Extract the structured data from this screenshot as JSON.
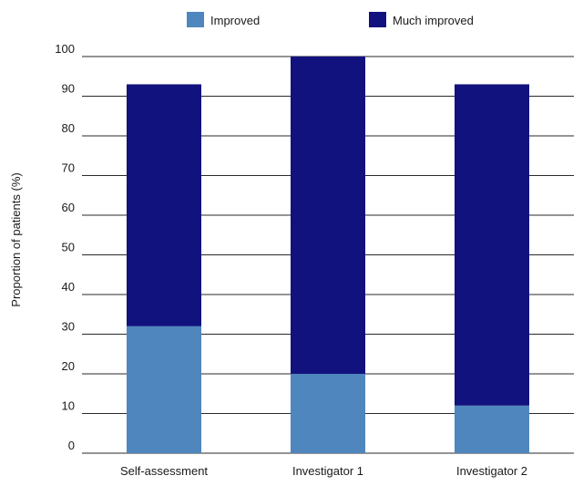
{
  "chart_data": {
    "type": "bar",
    "stacked": true,
    "categories": [
      "Self-assessment",
      "Investigator 1",
      "Investigator 2"
    ],
    "series": [
      {
        "name": "Improved",
        "values": [
          32,
          20,
          12
        ],
        "color": "#4f86bd"
      },
      {
        "name": "Much improved",
        "values": [
          61,
          80,
          81
        ],
        "color": "#12127e"
      }
    ],
    "title": "",
    "xlabel": "",
    "ylabel": "Proportion of patients (%)",
    "ylim": [
      0,
      100
    ],
    "yticks": [
      0,
      10,
      20,
      30,
      40,
      50,
      60,
      70,
      80,
      90,
      100
    ],
    "grid": "horizontal",
    "legend_position": "top"
  }
}
